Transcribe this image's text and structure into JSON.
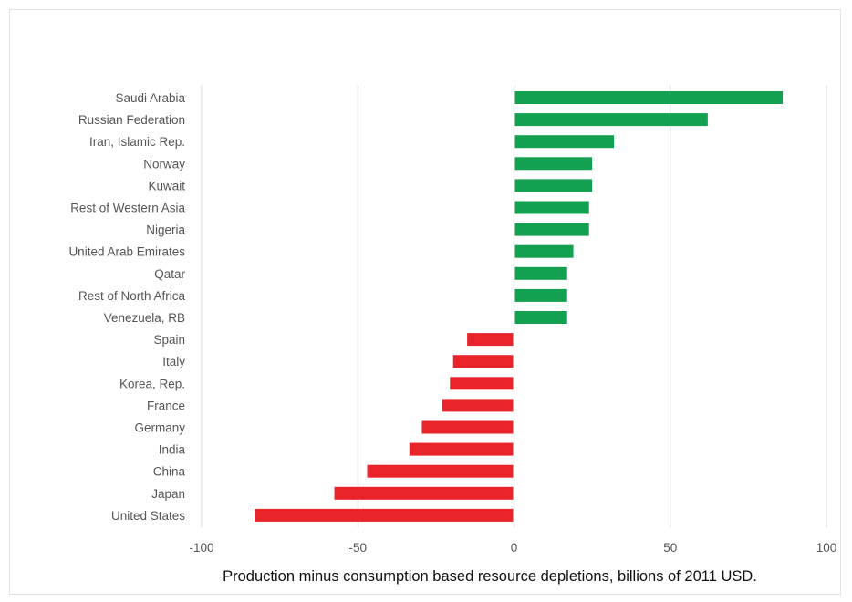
{
  "chart_data": {
    "type": "bar",
    "orientation": "horizontal",
    "title": "",
    "xlabel": "Production minus consumption based resource depletions, billions of 2011 USD.",
    "ylabel": "",
    "xlim": [
      -100,
      100
    ],
    "xticks": [
      -100,
      -50,
      0,
      50,
      100
    ],
    "grid": "vertical",
    "legend": "none",
    "categories": [
      "Saudi Arabia",
      "Russian Federation",
      "Iran, Islamic Rep.",
      "Norway",
      "Kuwait",
      "Rest of Western Asia",
      "Nigeria",
      "United Arab Emirates",
      "Qatar",
      "Rest of North Africa",
      "Venezuela, RB",
      "Spain",
      "Italy",
      "Korea, Rep.",
      "France",
      "Germany",
      "India",
      "China",
      "Japan",
      "United States"
    ],
    "values": [
      86,
      62,
      32,
      25,
      25,
      24,
      24,
      19,
      17,
      17,
      17,
      -15,
      -19.5,
      -20.5,
      -23,
      -29.5,
      -33.5,
      -47,
      -57.5,
      -83
    ],
    "colors": {
      "positive": "#13a050",
      "negative": "#e8232a",
      "grid": "#d9d9d9",
      "axis_text": "#555555"
    }
  }
}
